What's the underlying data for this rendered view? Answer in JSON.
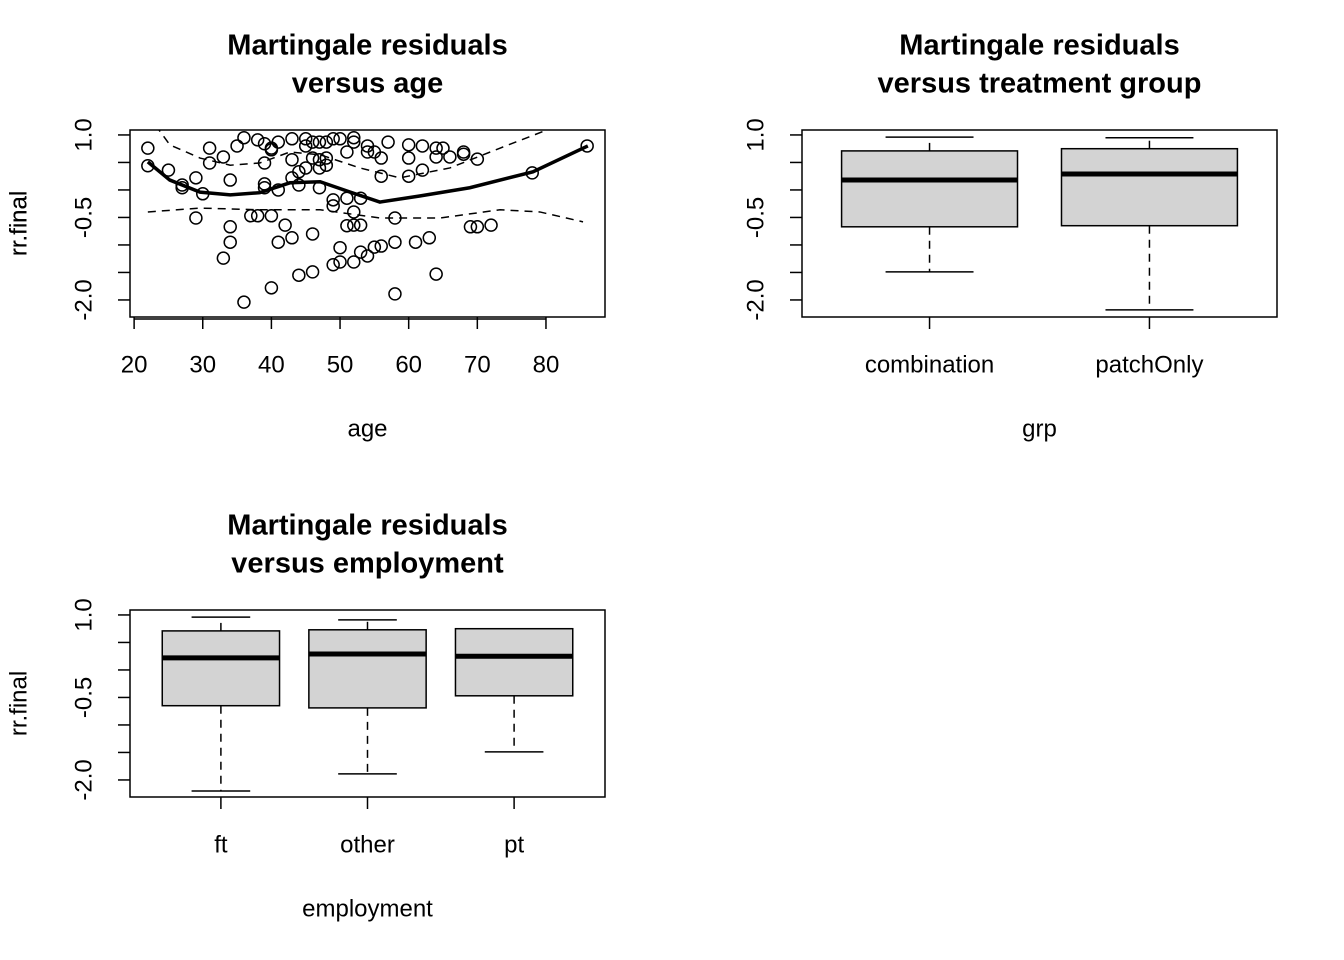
{
  "chart_data": [
    {
      "type": "scatter",
      "title": [
        "Martingale residuals",
        "versus age"
      ],
      "x_label": "age",
      "y_label": "rr.final",
      "xlim": [
        19.4,
        88.6
      ],
      "xticks": [
        20,
        30,
        40,
        50,
        60,
        70,
        80
      ],
      "ylim": [
        -2.31,
        1.09
      ],
      "yticks": [
        {
          "value": -2,
          "label": "-2.0"
        },
        {
          "value": -0.5,
          "label": "-0.5"
        },
        {
          "value": 1,
          "label": "1.0"
        }
      ],
      "yminor": [
        -1.5,
        -1,
        0,
        0.5
      ],
      "points": {
        "x": [
          22,
          22,
          25,
          27,
          27,
          29,
          29,
          30,
          31,
          31,
          33,
          33,
          34,
          34,
          34,
          35,
          36,
          36,
          37,
          38,
          38,
          39,
          39,
          39,
          39,
          40,
          40,
          40,
          40,
          41,
          41,
          41,
          42,
          43,
          43,
          43,
          43,
          44,
          44,
          44,
          45,
          45,
          45,
          46,
          46,
          46,
          46,
          47,
          47,
          47,
          47,
          48,
          48,
          48,
          49,
          49,
          49,
          49,
          50,
          50,
          50,
          51,
          51,
          51,
          52,
          52,
          52,
          52,
          52,
          53,
          53,
          53,
          54,
          54,
          54,
          55,
          55,
          56,
          56,
          56,
          57,
          58,
          58,
          58,
          60,
          60,
          60,
          61,
          62,
          62,
          63,
          64,
          64,
          64,
          65,
          66,
          68,
          68,
          69,
          70,
          70,
          72,
          78,
          86
        ],
        "values": [
          0.76,
          0.44,
          0.36,
          0.09,
          0.04,
          0.22,
          -0.51,
          -0.07,
          0.76,
          0.49,
          0.6,
          -1.24,
          -0.67,
          -0.95,
          0.18,
          0.8,
          0.95,
          -2.04,
          -0.47,
          0.91,
          -0.47,
          0.84,
          0.49,
          0.04,
          0.11,
          0.76,
          0.73,
          -0.47,
          -1.78,
          0.87,
          0,
          -0.95,
          -0.64,
          0.93,
          0.55,
          0.22,
          -0.87,
          0.33,
          0.09,
          -1.55,
          0.93,
          0.8,
          0.4,
          0.87,
          0.58,
          -1.49,
          -0.8,
          0.87,
          0.55,
          0.4,
          0.04,
          0.87,
          0.58,
          0.45,
          0.93,
          -0.18,
          -0.29,
          -1.36,
          0.93,
          -1.05,
          -1.31,
          0.69,
          -0.15,
          -0.65,
          0.95,
          0.87,
          -0.4,
          -0.64,
          -1.31,
          -0.15,
          -0.64,
          -1.13,
          0.8,
          0.69,
          -1.2,
          0.69,
          -1.04,
          0.58,
          0.25,
          -1.02,
          0.87,
          -0.51,
          -0.95,
          -1.89,
          0.82,
          0.58,
          0.25,
          -0.95,
          0.8,
          0.36,
          -0.87,
          0.6,
          0.76,
          -1.53,
          0.76,
          0.6,
          0.69,
          0.65,
          -0.67,
          -0.67,
          0.56,
          -0.64,
          0.31,
          0.8
        ]
      },
      "curves": [
        {
          "style": "solid",
          "x": [
            22.0,
            25.2,
            29.6,
            34.0,
            38.3,
            42.7,
            47.1,
            51.5,
            55.8,
            61.6,
            68.9,
            78.1,
            86.1
          ],
          "values": [
            0.51,
            0.18,
            -0.04,
            -0.09,
            -0.05,
            0.13,
            0.15,
            -0.04,
            -0.22,
            -0.11,
            0.04,
            0.33,
            0.8
          ]
        },
        {
          "style": "dashed",
          "x": [
            23.1,
            25.2,
            29.6,
            34.0,
            38.3,
            42.7,
            47.1,
            52.9,
            58.7,
            66.0,
            73.3,
            82.0
          ],
          "values": [
            1.18,
            0.82,
            0.58,
            0.45,
            0.49,
            0.69,
            0.64,
            0.4,
            0.22,
            0.4,
            0.76,
            1.18
          ]
        },
        {
          "style": "dashed",
          "x": [
            22.0,
            29.6,
            38.3,
            47.1,
            55.8,
            64.6,
            73.3,
            79.1,
            85.4
          ],
          "values": [
            -0.4,
            -0.33,
            -0.36,
            -0.36,
            -0.51,
            -0.51,
            -0.36,
            -0.4,
            -0.58
          ]
        }
      ]
    },
    {
      "type": "box",
      "title": [
        "Martingale residuals",
        "versus treatment group"
      ],
      "x_label": "grp",
      "y_label": "rr.final",
      "color": "#d3d3d3",
      "ylim": [
        -2.31,
        1.09
      ],
      "yticks": [
        {
          "value": -2,
          "label": "-2.0"
        },
        {
          "value": -0.5,
          "label": "-0.5"
        },
        {
          "value": 1,
          "label": "1.0"
        }
      ],
      "yminor": [
        -1.5,
        -1,
        0,
        0.5
      ],
      "categories": [
        "combination",
        "patchOnly"
      ],
      "boxes": [
        {
          "min": -1.49,
          "q1": -0.67,
          "median": 0.18,
          "q3": 0.71,
          "max": 0.96
        },
        {
          "min": -2.18,
          "q1": -0.65,
          "median": 0.29,
          "q3": 0.75,
          "max": 0.95
        }
      ]
    },
    {
      "type": "box",
      "title": [
        "Martingale residuals",
        "versus employment"
      ],
      "x_label": "employment",
      "y_label": "rr.final",
      "color": "#d3d3d3",
      "ylim": [
        -2.31,
        1.09
      ],
      "yticks": [
        {
          "value": -2,
          "label": "-2.0"
        },
        {
          "value": -0.5,
          "label": "-0.5"
        },
        {
          "value": 1,
          "label": "1.0"
        }
      ],
      "yminor": [
        -1.5,
        -1,
        0,
        0.5
      ],
      "categories": [
        "ft",
        "other",
        "pt"
      ],
      "boxes": [
        {
          "min": -2.2,
          "q1": -0.65,
          "median": 0.22,
          "q3": 0.71,
          "max": 0.96
        },
        {
          "min": -1.89,
          "q1": -0.69,
          "median": 0.29,
          "q3": 0.73,
          "max": 0.91
        },
        {
          "min": -1.49,
          "q1": -0.47,
          "median": 0.25,
          "q3": 0.75,
          "max": 0.75
        }
      ]
    }
  ]
}
